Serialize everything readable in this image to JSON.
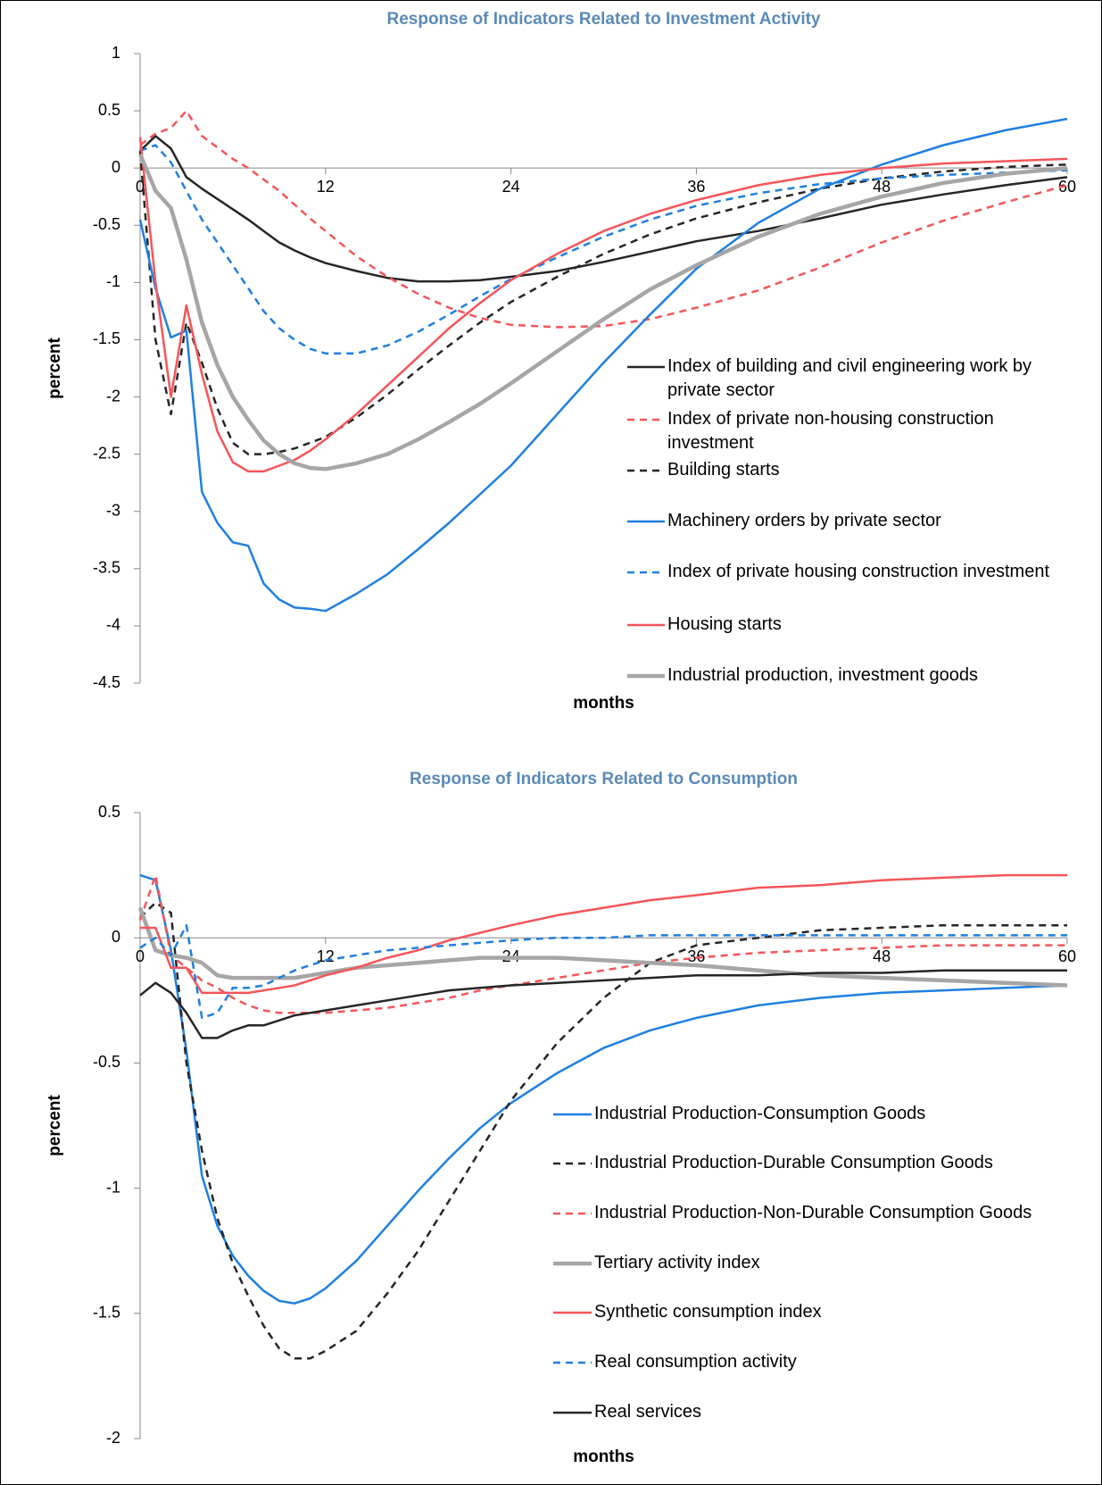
{
  "chart_data": [
    {
      "type": "line",
      "title": "Response of Indicators Related to Investment Activity",
      "y_label": "percent",
      "x_label": "months",
      "x": [
        0,
        1,
        2,
        3,
        4,
        5,
        6,
        7,
        8,
        9,
        10,
        11,
        12,
        14,
        16,
        18,
        20,
        22,
        24,
        27,
        30,
        33,
        36,
        40,
        44,
        48,
        52,
        56,
        60
      ],
      "xlim": [
        0,
        60
      ],
      "xticks": [
        0,
        12,
        24,
        36,
        48,
        60
      ],
      "ylim": [
        -4.5,
        1
      ],
      "yticks": [
        1,
        0.5,
        0,
        -0.5,
        -1,
        -1.5,
        -2,
        -2.5,
        -3,
        -3.5,
        -4,
        -4.5
      ],
      "series": [
        {
          "name": "Index of building and civil engineering work by private sector",
          "color": "#262626",
          "style": "solid",
          "values": [
            0.15,
            0.28,
            0.17,
            -0.08,
            -0.18,
            -0.27,
            -0.36,
            -0.45,
            -0.55,
            -0.65,
            -0.72,
            -0.78,
            -0.83,
            -0.9,
            -0.96,
            -0.99,
            -0.99,
            -0.98,
            -0.95,
            -0.9,
            -0.82,
            -0.73,
            -0.64,
            -0.55,
            -0.44,
            -0.32,
            -0.23,
            -0.15,
            -0.08
          ]
        },
        {
          "name": "Index of private non-housing construction investment",
          "color": "#f4555a",
          "style": "dashed",
          "values": [
            0.2,
            0.3,
            0.35,
            0.5,
            0.28,
            0.18,
            0.08,
            0.0,
            -0.1,
            -0.2,
            -0.32,
            -0.44,
            -0.55,
            -0.77,
            -0.95,
            -1.1,
            -1.22,
            -1.31,
            -1.37,
            -1.39,
            -1.38,
            -1.32,
            -1.22,
            -1.07,
            -0.87,
            -0.65,
            -0.46,
            -0.3,
            -0.15
          ]
        },
        {
          "name": "Building starts",
          "color": "#262626",
          "style": "dashed",
          "values": [
            0.15,
            -1.5,
            -2.15,
            -1.35,
            -1.7,
            -2.1,
            -2.4,
            -2.5,
            -2.5,
            -2.48,
            -2.45,
            -2.4,
            -2.35,
            -2.18,
            -1.98,
            -1.76,
            -1.55,
            -1.35,
            -1.17,
            -0.95,
            -0.75,
            -0.58,
            -0.44,
            -0.3,
            -0.18,
            -0.09,
            -0.03,
            0.01,
            0.03
          ]
        },
        {
          "name": "Machinery orders by private sector",
          "color": "#1f7fe0",
          "style": "solid",
          "values": [
            -0.45,
            -1.05,
            -1.48,
            -1.42,
            -2.83,
            -3.1,
            -3.27,
            -3.3,
            -3.63,
            -3.77,
            -3.84,
            -3.85,
            -3.87,
            -3.72,
            -3.55,
            -3.33,
            -3.1,
            -2.85,
            -2.6,
            -2.15,
            -1.7,
            -1.28,
            -0.88,
            -0.48,
            -0.18,
            0.03,
            0.2,
            0.33,
            0.43
          ]
        },
        {
          "name": "Index of private housing construction investment",
          "color": "#1f7fe0",
          "style": "dashed",
          "values": [
            0.15,
            0.2,
            0.05,
            -0.2,
            -0.45,
            -0.65,
            -0.85,
            -1.05,
            -1.25,
            -1.4,
            -1.5,
            -1.58,
            -1.62,
            -1.62,
            -1.55,
            -1.43,
            -1.28,
            -1.12,
            -0.97,
            -0.78,
            -0.6,
            -0.45,
            -0.33,
            -0.22,
            -0.14,
            -0.09,
            -0.06,
            -0.04,
            -0.02
          ]
        },
        {
          "name": "Housing starts",
          "color": "#f4555a",
          "style": "solid",
          "values": [
            0.27,
            -1.0,
            -2.0,
            -1.2,
            -1.8,
            -2.3,
            -2.57,
            -2.65,
            -2.65,
            -2.6,
            -2.55,
            -2.47,
            -2.37,
            -2.15,
            -1.9,
            -1.65,
            -1.4,
            -1.18,
            -0.98,
            -0.75,
            -0.55,
            -0.4,
            -0.28,
            -0.15,
            -0.06,
            0.0,
            0.04,
            0.06,
            0.08
          ]
        },
        {
          "name": "Industrial production, investment goods",
          "color": "#a6a6a6",
          "style": "thick",
          "values": [
            0.12,
            -0.2,
            -0.35,
            -0.8,
            -1.35,
            -1.72,
            -2.0,
            -2.2,
            -2.38,
            -2.5,
            -2.58,
            -2.62,
            -2.63,
            -2.58,
            -2.5,
            -2.37,
            -2.22,
            -2.06,
            -1.88,
            -1.6,
            -1.32,
            -1.06,
            -0.85,
            -0.6,
            -0.4,
            -0.25,
            -0.13,
            -0.05,
            0.0
          ]
        }
      ]
    },
    {
      "type": "line",
      "title": "Response of Indicators Related to Consumption",
      "y_label": "percent",
      "x_label": "months",
      "x": [
        0,
        1,
        2,
        3,
        4,
        5,
        6,
        7,
        8,
        9,
        10,
        11,
        12,
        14,
        16,
        18,
        20,
        22,
        24,
        27,
        30,
        33,
        36,
        40,
        44,
        48,
        52,
        56,
        60
      ],
      "xlim": [
        0,
        60
      ],
      "xticks": [
        0,
        12,
        24,
        36,
        48,
        60
      ],
      "ylim": [
        -2,
        0.5
      ],
      "yticks": [
        0.5,
        0,
        -0.5,
        -1,
        -1.5,
        -2
      ],
      "series": [
        {
          "name": "Industrial Production-Consumption Goods",
          "color": "#1f7fe0",
          "style": "solid",
          "values": [
            0.25,
            0.23,
            -0.05,
            -0.45,
            -0.95,
            -1.15,
            -1.27,
            -1.35,
            -1.41,
            -1.45,
            -1.46,
            -1.44,
            -1.4,
            -1.29,
            -1.15,
            -1.01,
            -0.88,
            -0.76,
            -0.66,
            -0.54,
            -0.44,
            -0.37,
            -0.32,
            -0.27,
            -0.24,
            -0.22,
            -0.21,
            -0.2,
            -0.19
          ]
        },
        {
          "name": "Industrial Production-Durable Consumption Goods",
          "color": "#262626",
          "style": "dashed",
          "values": [
            0.08,
            0.14,
            0.1,
            -0.5,
            -0.85,
            -1.12,
            -1.3,
            -1.43,
            -1.55,
            -1.64,
            -1.68,
            -1.68,
            -1.65,
            -1.57,
            -1.42,
            -1.25,
            -1.05,
            -0.85,
            -0.65,
            -0.42,
            -0.24,
            -0.1,
            -0.03,
            0.0,
            0.03,
            0.04,
            0.05,
            0.05,
            0.05
          ]
        },
        {
          "name": "Industrial Production-Non-Durable Consumption Goods",
          "color": "#f4555a",
          "style": "dashed",
          "values": [
            0.07,
            0.25,
            -0.07,
            -0.12,
            -0.17,
            -0.2,
            -0.24,
            -0.27,
            -0.29,
            -0.3,
            -0.3,
            -0.3,
            -0.3,
            -0.29,
            -0.28,
            -0.26,
            -0.24,
            -0.21,
            -0.19,
            -0.16,
            -0.13,
            -0.1,
            -0.08,
            -0.06,
            -0.05,
            -0.04,
            -0.03,
            -0.03,
            -0.03
          ]
        },
        {
          "name": "Tertiary activity index",
          "color": "#a6a6a6",
          "style": "thick",
          "values": [
            0.12,
            -0.05,
            -0.07,
            -0.08,
            -0.1,
            -0.15,
            -0.16,
            -0.16,
            -0.16,
            -0.16,
            -0.16,
            -0.15,
            -0.14,
            -0.12,
            -0.11,
            -0.1,
            -0.09,
            -0.08,
            -0.08,
            -0.08,
            -0.09,
            -0.1,
            -0.11,
            -0.13,
            -0.15,
            -0.16,
            -0.17,
            -0.18,
            -0.19
          ]
        },
        {
          "name": "Synthetic consumption index",
          "color": "#f4555a",
          "style": "solid",
          "values": [
            0.04,
            0.04,
            -0.12,
            -0.12,
            -0.22,
            -0.22,
            -0.22,
            -0.22,
            -0.21,
            -0.2,
            -0.19,
            -0.17,
            -0.15,
            -0.12,
            -0.08,
            -0.05,
            -0.01,
            0.02,
            0.05,
            0.09,
            0.12,
            0.15,
            0.17,
            0.2,
            0.21,
            0.23,
            0.24,
            0.25,
            0.25
          ]
        },
        {
          "name": "Real consumption activity",
          "color": "#1f7fe0",
          "style": "dashed",
          "values": [
            -0.04,
            0.0,
            -0.07,
            0.05,
            -0.32,
            -0.3,
            -0.2,
            -0.2,
            -0.19,
            -0.16,
            -0.13,
            -0.11,
            -0.09,
            -0.07,
            -0.05,
            -0.04,
            -0.03,
            -0.02,
            -0.01,
            0.0,
            0.0,
            0.01,
            0.01,
            0.01,
            0.01,
            0.01,
            0.01,
            0.01,
            0.01
          ]
        },
        {
          "name": "Real services",
          "color": "#262626",
          "style": "solid",
          "values": [
            -0.23,
            -0.18,
            -0.22,
            -0.3,
            -0.4,
            -0.4,
            -0.37,
            -0.35,
            -0.35,
            -0.33,
            -0.31,
            -0.3,
            -0.29,
            -0.27,
            -0.25,
            -0.23,
            -0.21,
            -0.2,
            -0.19,
            -0.18,
            -0.17,
            -0.16,
            -0.15,
            -0.15,
            -0.14,
            -0.14,
            -0.13,
            -0.13,
            -0.13
          ]
        }
      ]
    }
  ]
}
